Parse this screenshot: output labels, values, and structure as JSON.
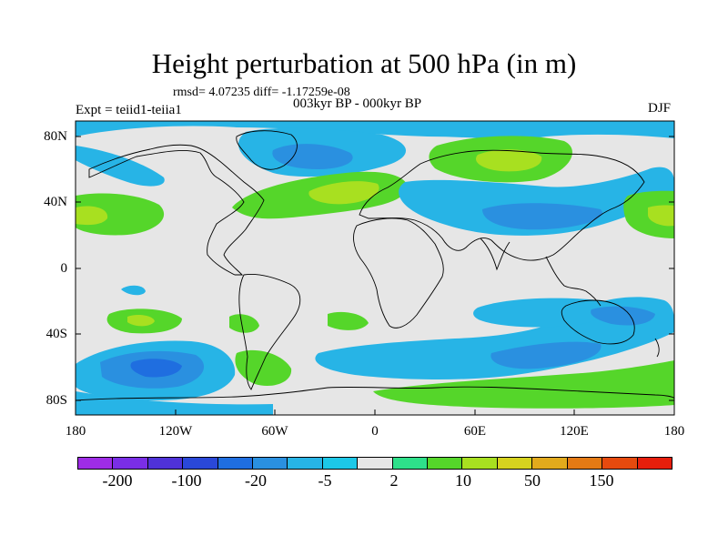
{
  "title": "Height perturbation at 500 hPa (in m)",
  "stats": "rmsd= 4.07235 diff= -1.17259e-08",
  "period": "003kyr BP - 000kyr BP",
  "experiment": "Expt = teiid1-teiia1",
  "season": "DJF",
  "map": {
    "lat_ticks": [
      "80N",
      "40N",
      "0",
      "40S",
      "80S"
    ],
    "lon_ticks": [
      "180",
      "120W",
      "60W",
      "0",
      "60E",
      "120E",
      "180"
    ],
    "background_color": "#e6e6e6"
  },
  "colorbar": {
    "colors": [
      "#9e2ce6",
      "#7a2ee6",
      "#4f32d8",
      "#2a48d8",
      "#1f6ee0",
      "#2a90e0",
      "#27b4e6",
      "#1cc8e8",
      "#e6e6e6",
      "#2ee08a",
      "#55d62a",
      "#a8e020",
      "#d6d21e",
      "#e2aa1c",
      "#e47a14",
      "#e64a0e",
      "#e61e0c"
    ],
    "labels": [
      "-200",
      "-100",
      "-20",
      "-5",
      "2",
      "10",
      "50",
      "150"
    ]
  }
}
